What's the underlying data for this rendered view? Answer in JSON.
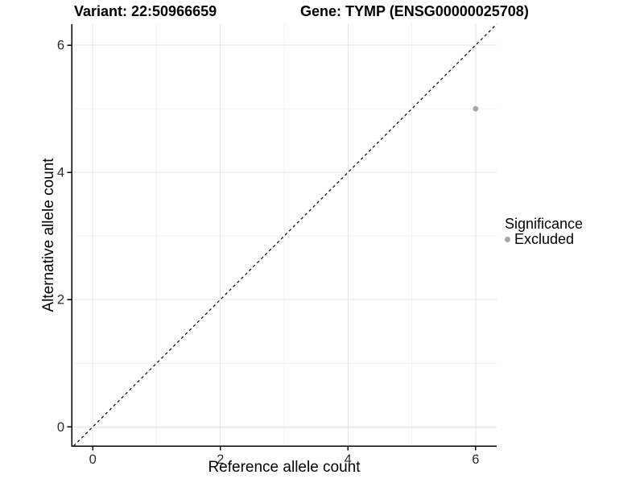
{
  "titles": {
    "left": "Variant: 22:50966659",
    "right": "Gene: TYMP (ENSG00000025708)"
  },
  "chart_data": {
    "type": "scatter",
    "title": "Variant: 22:50966659 | Gene: TYMP (ENSG00000025708)",
    "xlabel": "Reference allele count",
    "ylabel": "Alternative allele count",
    "xlim": [
      -0.33,
      6.33
    ],
    "ylim": [
      -0.3,
      6.33
    ],
    "x_ticks": [
      0,
      2,
      4,
      6
    ],
    "y_ticks": [
      0,
      2,
      4,
      6
    ],
    "x_minor_ticks": [
      1,
      3,
      5
    ],
    "y_minor_ticks": [
      1,
      3,
      5
    ],
    "grid": true,
    "points": [
      {
        "x": 6,
        "y": 5,
        "series": "Excluded"
      }
    ],
    "reference_line": {
      "type": "identity y=x",
      "style": "dashed",
      "color": "#000000"
    },
    "legend": {
      "title": "Significance",
      "position": "right",
      "entries": [
        {
          "label": "Excluded",
          "color": "#a6a6a6"
        }
      ]
    },
    "colors": {
      "point": "#a6a6a6",
      "grid_major": "#e4e4e4",
      "grid_minor": "#f1f1f1",
      "axis": "#000000",
      "tick_label": "#2e2e2e"
    }
  }
}
